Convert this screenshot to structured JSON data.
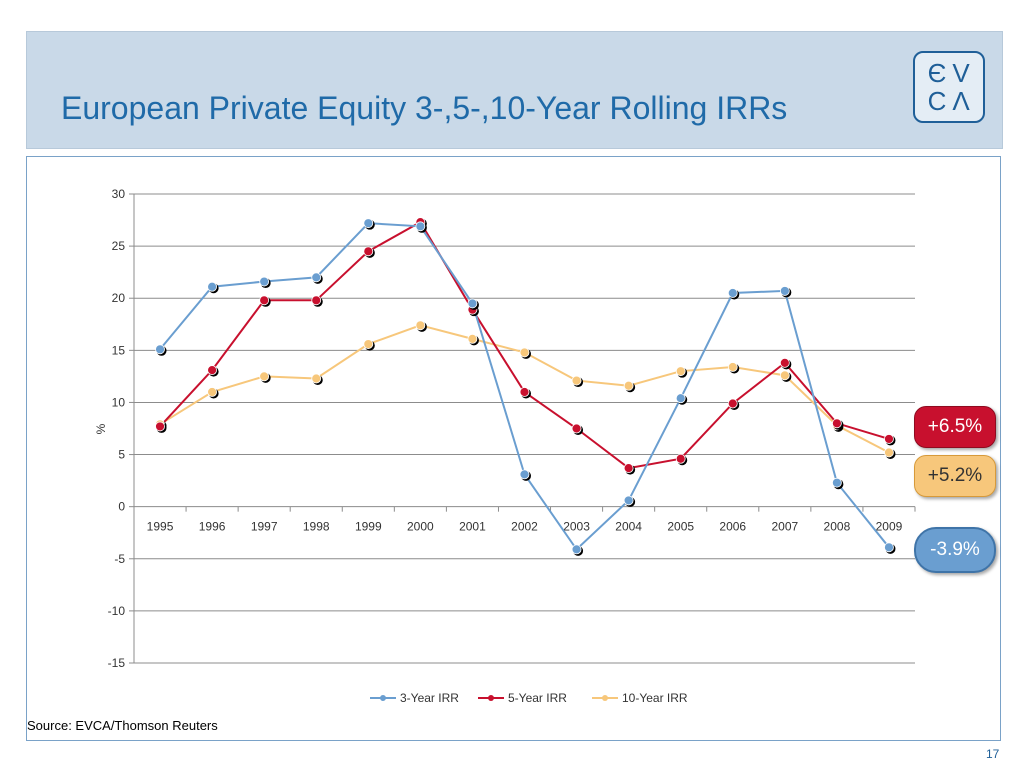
{
  "header": {
    "title": "European Private Equity 3-,5-,10-Year Rolling IRRs",
    "logo_text": [
      "Є",
      "V",
      "C",
      "Λ"
    ]
  },
  "chart_data": {
    "type": "line",
    "title": "",
    "xlabel": "",
    "ylabel": "%",
    "ylim": [
      -15,
      30
    ],
    "yticks": [
      -15,
      -10,
      -5,
      0,
      5,
      10,
      15,
      20,
      25,
      30
    ],
    "grid": true,
    "legend_position": "bottom",
    "categories": [
      "1995",
      "1996",
      "1997",
      "1998",
      "1999",
      "2000",
      "2001",
      "2002",
      "2003",
      "2004",
      "2005",
      "2006",
      "2007",
      "2008",
      "2009"
    ],
    "series": [
      {
        "name": "3-Year IRR",
        "color": "#6a9ed0",
        "values": [
          15.1,
          21.1,
          21.6,
          22.0,
          27.2,
          26.9,
          19.5,
          3.1,
          -4.1,
          0.6,
          10.4,
          20.5,
          20.7,
          2.3,
          -3.9
        ]
      },
      {
        "name": "5-Year IRR",
        "color": "#c8102e",
        "values": [
          7.7,
          13.1,
          19.8,
          19.8,
          24.5,
          27.3,
          18.9,
          11.0,
          7.5,
          3.7,
          4.6,
          9.9,
          13.8,
          8.0,
          6.5
        ]
      },
      {
        "name": "10-Year IRR",
        "color": "#f7c77b",
        "values": [
          7.9,
          11.0,
          12.5,
          12.3,
          15.6,
          17.4,
          16.1,
          14.8,
          12.1,
          11.6,
          13.0,
          13.4,
          12.6,
          7.8,
          5.2
        ]
      }
    ]
  },
  "badges": {
    "five_year": "+6.5%",
    "ten_year": "+5.2%",
    "three_year": "-3.9%"
  },
  "footer": {
    "source": "Source: EVCA/Thomson Reuters",
    "page_number": "17"
  }
}
